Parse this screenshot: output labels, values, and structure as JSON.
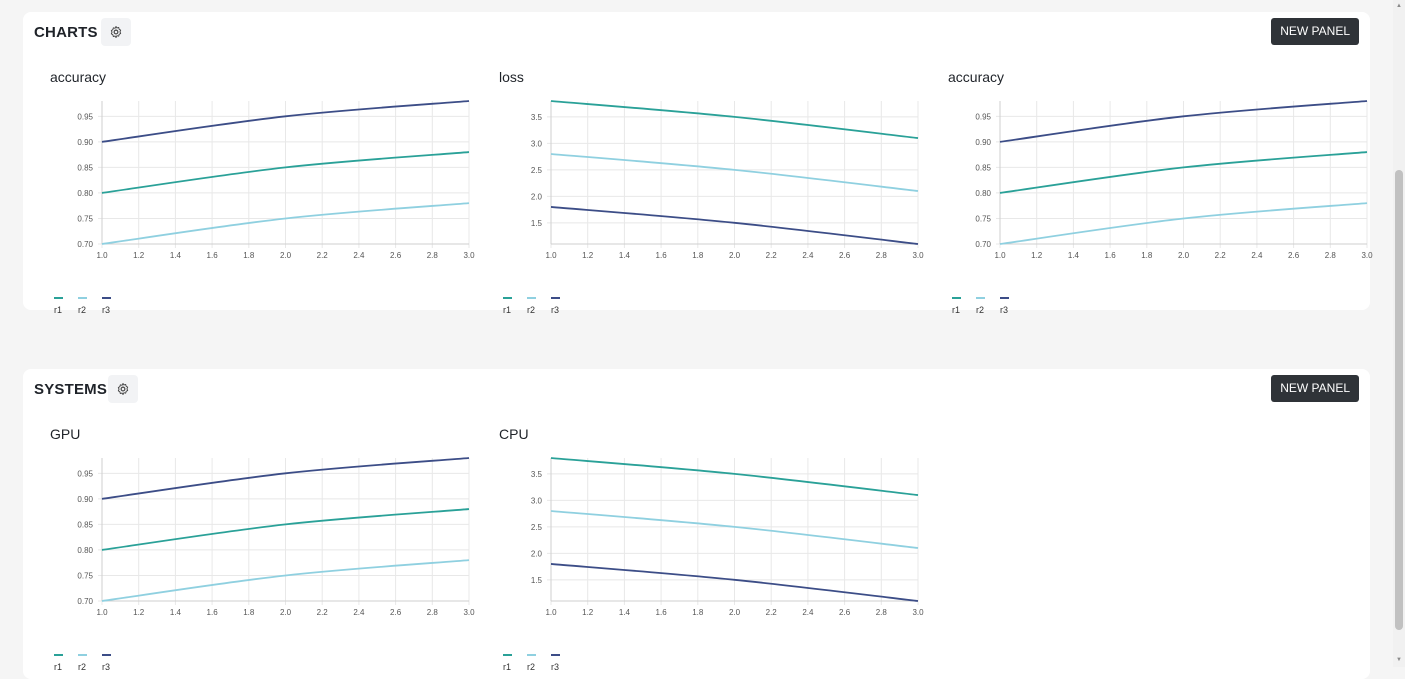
{
  "colors": {
    "r1": "#2aa198",
    "r2": "#8fd0e0",
    "r3": "#3c4d87",
    "grid": "#e8e8e8",
    "axis": "#cfcfcf",
    "tick_text": "#555555"
  },
  "sections": [
    {
      "id": "charts",
      "title": "CHARTS",
      "new_panel_label": "NEW PANEL",
      "gear_icon": "gear-icon"
    },
    {
      "id": "systems",
      "title": "SYSTEMS",
      "new_panel_label": "NEW PANEL",
      "gear_icon": "gear-icon"
    }
  ],
  "chart_data": [
    {
      "section": "charts",
      "type": "line",
      "title": "accuracy",
      "x": [
        1.0,
        2.0,
        3.0
      ],
      "xticks": [
        "1.0",
        "1.2",
        "1.4",
        "1.6",
        "1.8",
        "2.0",
        "2.2",
        "2.4",
        "2.6",
        "2.8",
        "3.0"
      ],
      "xlim": [
        1.0,
        3.0
      ],
      "ylim": [
        0.7,
        0.98
      ],
      "yticks": [
        "0.70",
        "0.75",
        "0.80",
        "0.85",
        "0.90",
        "0.95"
      ],
      "grid": true,
      "legend_placement": "bottom-left",
      "series": [
        {
          "name": "r1",
          "values": [
            0.8,
            0.85,
            0.88
          ]
        },
        {
          "name": "r2",
          "values": [
            0.7,
            0.75,
            0.78
          ]
        },
        {
          "name": "r3",
          "values": [
            0.9,
            0.95,
            0.98
          ]
        }
      ]
    },
    {
      "section": "charts",
      "type": "line",
      "title": "loss",
      "x": [
        1.0,
        2.0,
        3.0
      ],
      "xticks": [
        "1.0",
        "1.2",
        "1.4",
        "1.6",
        "1.8",
        "2.0",
        "2.2",
        "2.4",
        "2.6",
        "2.8",
        "3.0"
      ],
      "xlim": [
        1.0,
        3.0
      ],
      "ylim": [
        1.1,
        3.8
      ],
      "yticks": [
        "1.5",
        "2.0",
        "2.5",
        "3.0",
        "3.5"
      ],
      "grid": true,
      "legend_placement": "bottom-left",
      "series": [
        {
          "name": "r1",
          "values": [
            3.8,
            3.5,
            3.1
          ]
        },
        {
          "name": "r2",
          "values": [
            2.8,
            2.5,
            2.1
          ]
        },
        {
          "name": "r3",
          "values": [
            1.8,
            1.5,
            1.1
          ]
        }
      ]
    },
    {
      "section": "charts",
      "type": "line",
      "title": "accuracy",
      "x": [
        1.0,
        2.0,
        3.0
      ],
      "xticks": [
        "1.0",
        "1.2",
        "1.4",
        "1.6",
        "1.8",
        "2.0",
        "2.2",
        "2.4",
        "2.6",
        "2.8",
        "3.0"
      ],
      "xlim": [
        1.0,
        3.0
      ],
      "ylim": [
        0.7,
        0.98
      ],
      "yticks": [
        "0.70",
        "0.75",
        "0.80",
        "0.85",
        "0.90",
        "0.95"
      ],
      "grid": true,
      "legend_placement": "bottom-left",
      "series": [
        {
          "name": "r1",
          "values": [
            0.8,
            0.85,
            0.88
          ]
        },
        {
          "name": "r2",
          "values": [
            0.7,
            0.75,
            0.78
          ]
        },
        {
          "name": "r3",
          "values": [
            0.9,
            0.95,
            0.98
          ]
        }
      ]
    },
    {
      "section": "systems",
      "type": "line",
      "title": "GPU",
      "x": [
        1.0,
        2.0,
        3.0
      ],
      "xticks": [
        "1.0",
        "1.2",
        "1.4",
        "1.6",
        "1.8",
        "2.0",
        "2.2",
        "2.4",
        "2.6",
        "2.8",
        "3.0"
      ],
      "xlim": [
        1.0,
        3.0
      ],
      "ylim": [
        0.7,
        0.98
      ],
      "yticks": [
        "0.70",
        "0.75",
        "0.80",
        "0.85",
        "0.90",
        "0.95"
      ],
      "grid": true,
      "legend_placement": "bottom-left",
      "series": [
        {
          "name": "r1",
          "values": [
            0.8,
            0.85,
            0.88
          ]
        },
        {
          "name": "r2",
          "values": [
            0.7,
            0.75,
            0.78
          ]
        },
        {
          "name": "r3",
          "values": [
            0.9,
            0.95,
            0.98
          ]
        }
      ]
    },
    {
      "section": "systems",
      "type": "line",
      "title": "CPU",
      "x": [
        1.0,
        2.0,
        3.0
      ],
      "xticks": [
        "1.0",
        "1.2",
        "1.4",
        "1.6",
        "1.8",
        "2.0",
        "2.2",
        "2.4",
        "2.6",
        "2.8",
        "3.0"
      ],
      "xlim": [
        1.0,
        3.0
      ],
      "ylim": [
        1.1,
        3.8
      ],
      "yticks": [
        "1.5",
        "2.0",
        "2.5",
        "3.0",
        "3.5"
      ],
      "grid": true,
      "legend_placement": "bottom-left",
      "series": [
        {
          "name": "r1",
          "values": [
            3.8,
            3.5,
            3.1
          ]
        },
        {
          "name": "r2",
          "values": [
            2.8,
            2.5,
            2.1
          ]
        },
        {
          "name": "r3",
          "values": [
            1.8,
            1.5,
            1.1
          ]
        }
      ]
    }
  ]
}
